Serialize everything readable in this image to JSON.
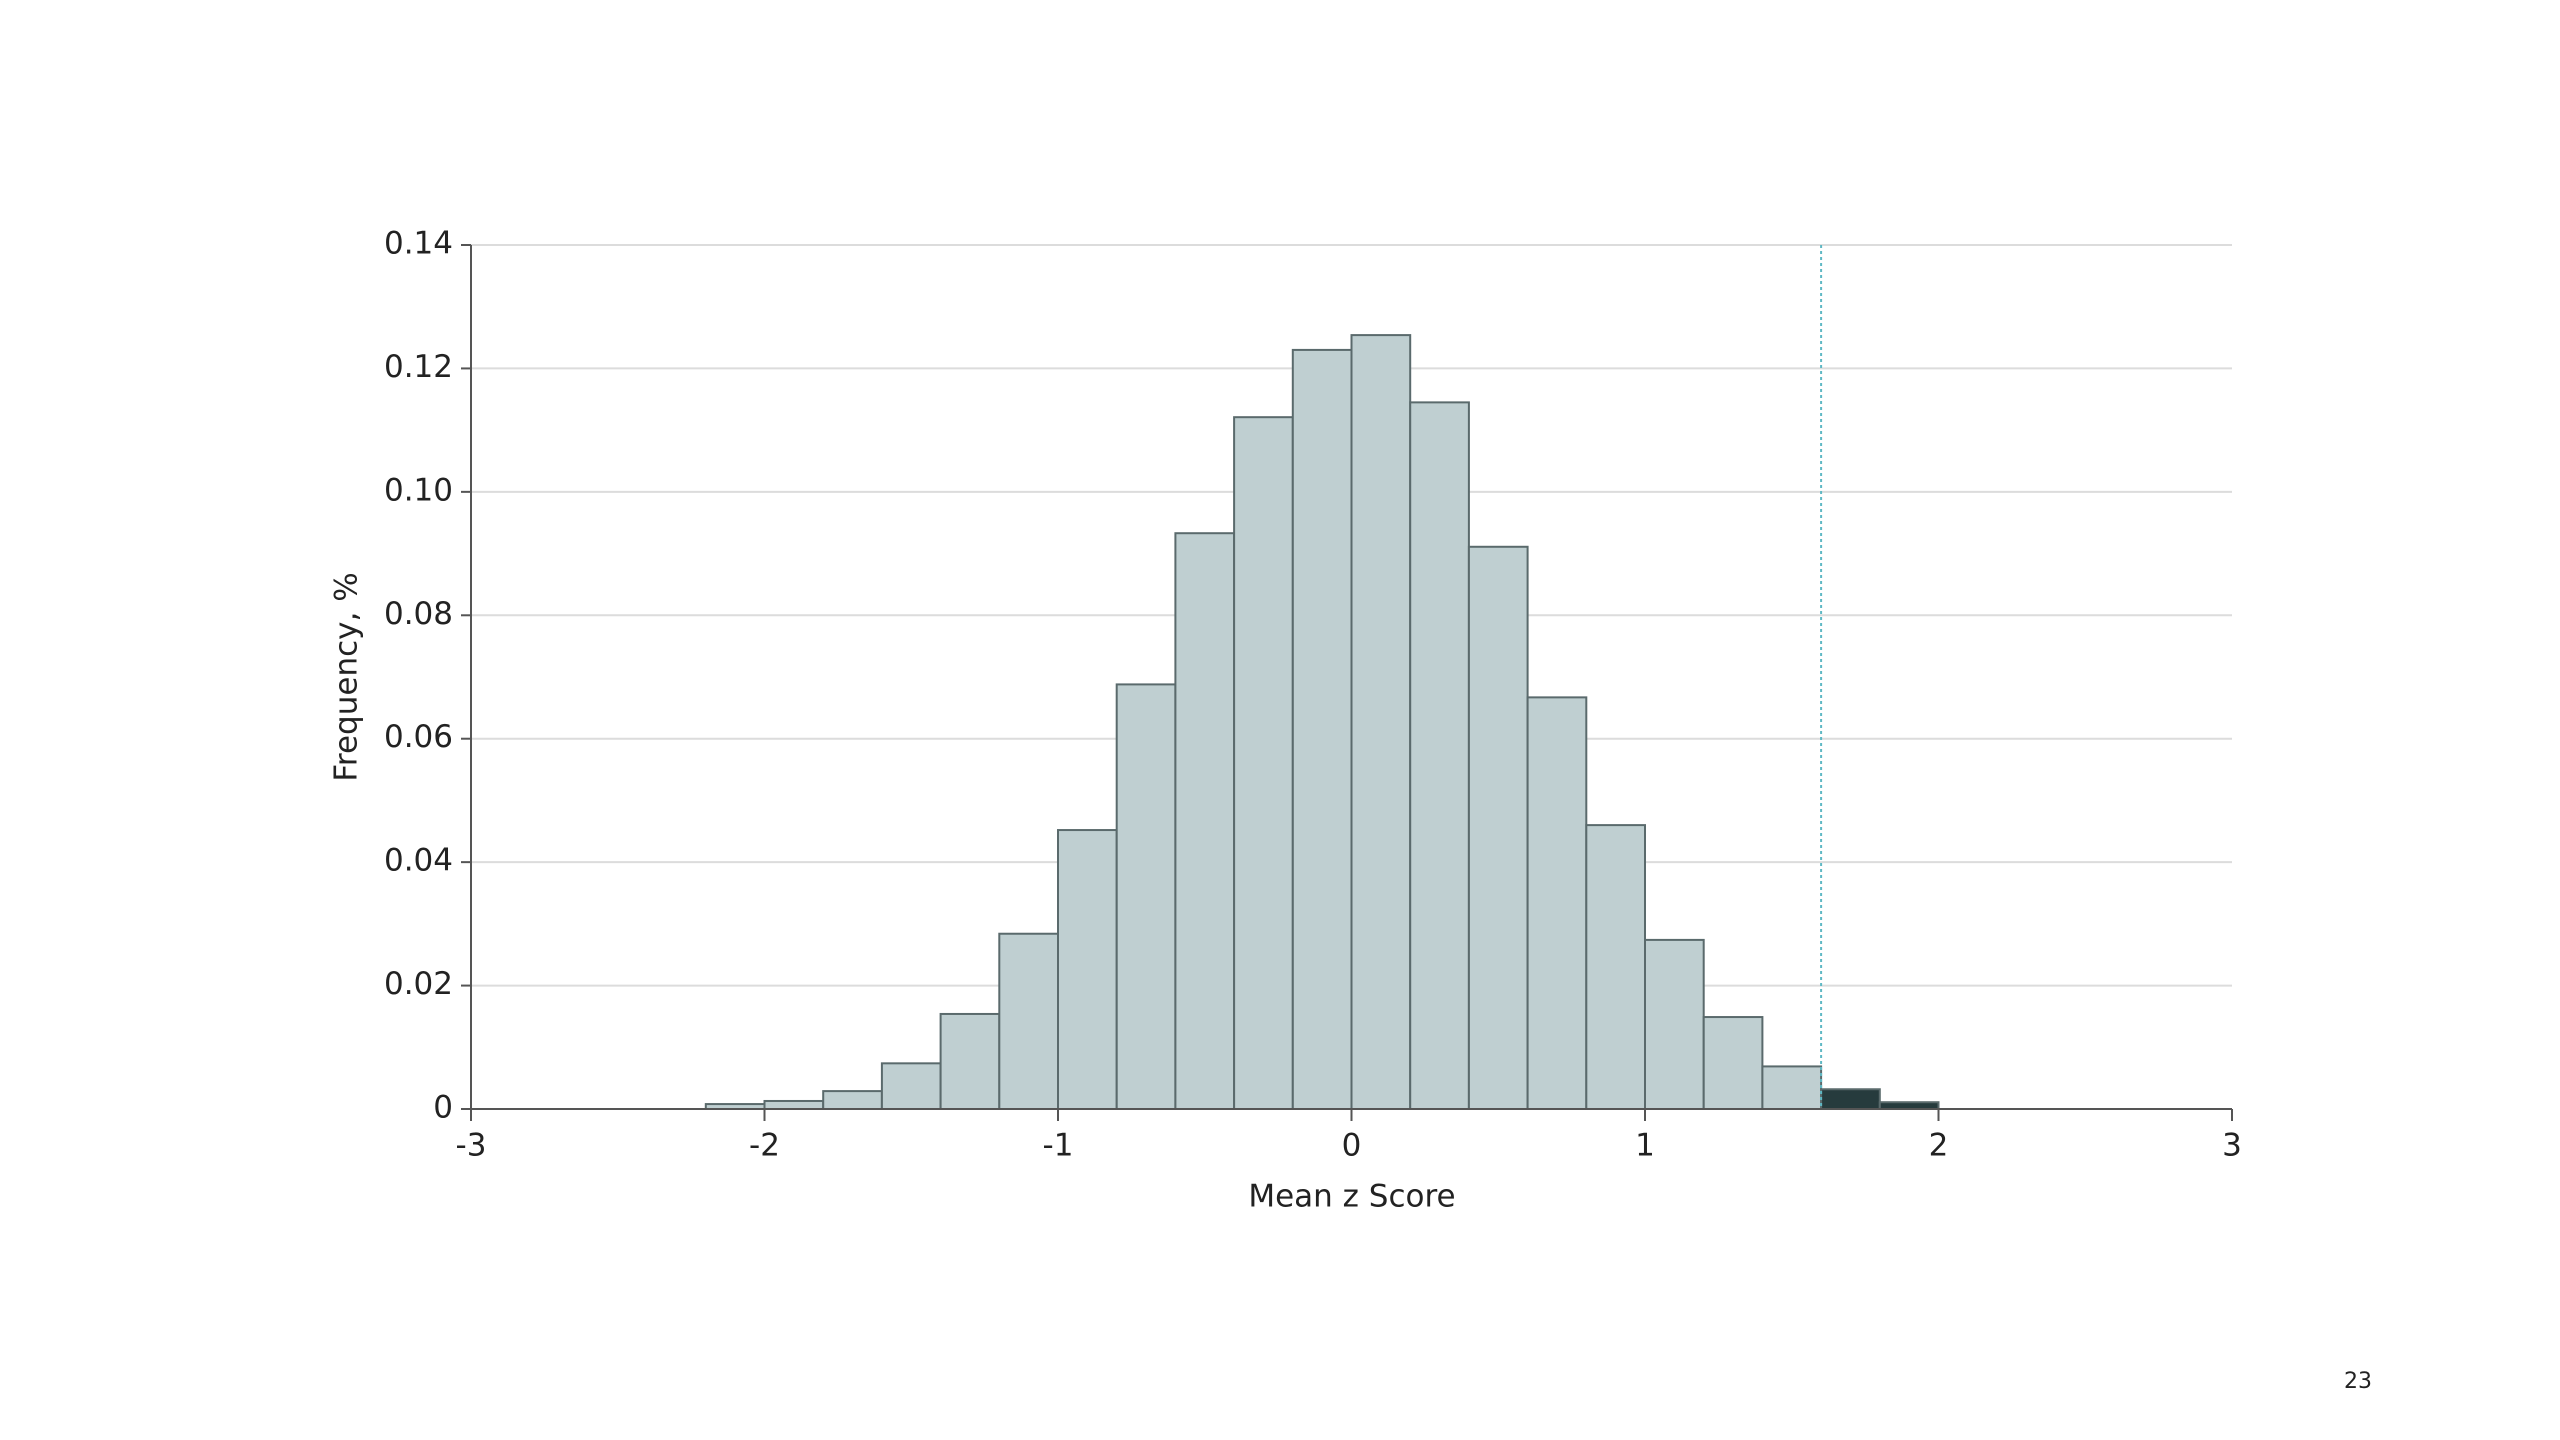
{
  "chart_data": {
    "type": "histogram",
    "xlabel": "Mean z Score",
    "ylabel": "Frequency, %",
    "bins": [
      -2.2,
      -2.0,
      -1.8,
      -1.6,
      -1.4,
      -1.2,
      -1.0,
      -0.8,
      -0.6,
      -0.4,
      -0.2,
      0,
      0.2,
      0.4,
      0.6,
      0.8,
      1.0,
      1.2,
      1.4,
      1.6,
      1.8,
      2.0
    ],
    "values": [
      0.0008,
      0.0013,
      0.0029,
      0.0074,
      0.0154,
      0.0284,
      0.0452,
      0.0688,
      0.0933,
      0.1121,
      0.123,
      0.1254,
      0.1145,
      0.0911,
      0.0667,
      0.046,
      0.0274,
      0.0149,
      0.0069,
      0.0032,
      0.0011
    ],
    "colors": [
      "#bfcfd1",
      "#bfcfd1",
      "#bfcfd1",
      "#bfcfd1",
      "#bfcfd1",
      "#bfcfd1",
      "#bfcfd1",
      "#bfcfd1",
      "#bfcfd1",
      "#bfcfd1",
      "#bfcfd1",
      "#bfcfd1",
      "#bfcfd1",
      "#bfcfd1",
      "#bfcfd1",
      "#bfcfd1",
      "#bfcfd1",
      "#bfcfd1",
      "#bfcfd1",
      "#263b3d",
      "#263b3d"
    ],
    "reference_line": {
      "x": 1.6,
      "color": "#5fb8c4"
    },
    "xlim": [
      -3,
      3
    ],
    "xticks": [
      -3,
      -2,
      -1,
      0,
      1,
      2,
      3
    ],
    "ylim": [
      0,
      0.14
    ],
    "yticks": [
      0,
      0.02,
      0.04,
      0.06,
      0.08,
      {
        "value": 0.1,
        "label": "0.10"
      },
      0.12,
      0.14
    ],
    "grid": true
  },
  "page_number": "23"
}
